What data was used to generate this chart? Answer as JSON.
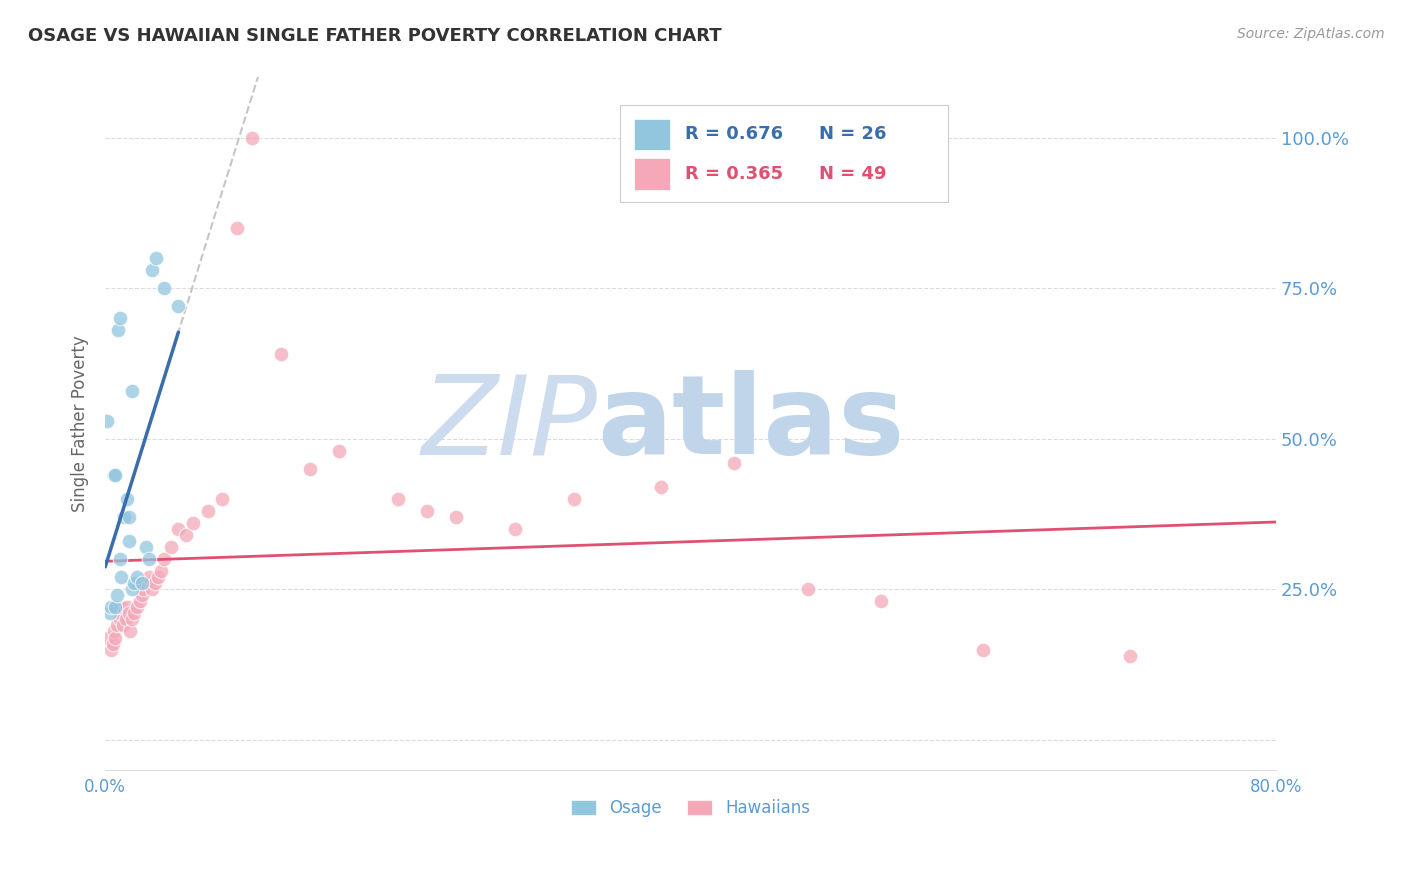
{
  "title": "OSAGE VS HAWAIIAN SINGLE FATHER POVERTY CORRELATION CHART",
  "source": "Source: ZipAtlas.com",
  "ylabel": "Single Father Poverty",
  "legend_r": [
    "R = 0.676",
    "R = 0.365"
  ],
  "legend_n": [
    "N = 26",
    "N = 49"
  ],
  "legend_labels": [
    "Osage",
    "Hawaiians"
  ],
  "xlim": [
    0.0,
    0.8
  ],
  "ylim": [
    -0.05,
    1.1
  ],
  "yticks": [
    0.0,
    0.25,
    0.5,
    0.75,
    1.0
  ],
  "ytick_labels": [
    "",
    "25.0%",
    "50.0%",
    "75.0%",
    "100.0%"
  ],
  "xticks": [
    0.0,
    0.8
  ],
  "xtick_labels": [
    "0.0%",
    "80.0%"
  ],
  "osage_x": [
    0.001,
    0.003,
    0.004,
    0.006,
    0.007,
    0.007,
    0.008,
    0.009,
    0.01,
    0.01,
    0.011,
    0.013,
    0.015,
    0.016,
    0.016,
    0.018,
    0.018,
    0.02,
    0.022,
    0.025,
    0.028,
    0.03,
    0.032,
    0.035,
    0.04,
    0.05
  ],
  "osage_y": [
    0.53,
    0.21,
    0.22,
    0.44,
    0.44,
    0.22,
    0.24,
    0.68,
    0.7,
    0.3,
    0.27,
    0.37,
    0.4,
    0.37,
    0.33,
    0.58,
    0.25,
    0.26,
    0.27,
    0.26,
    0.32,
    0.3,
    0.78,
    0.8,
    0.75,
    0.72
  ],
  "hawaiian_x": [
    0.002,
    0.004,
    0.005,
    0.006,
    0.007,
    0.008,
    0.01,
    0.01,
    0.011,
    0.012,
    0.014,
    0.015,
    0.016,
    0.017,
    0.018,
    0.02,
    0.022,
    0.024,
    0.025,
    0.026,
    0.028,
    0.03,
    0.032,
    0.034,
    0.036,
    0.038,
    0.04,
    0.045,
    0.05,
    0.055,
    0.06,
    0.07,
    0.08,
    0.09,
    0.1,
    0.12,
    0.14,
    0.16,
    0.2,
    0.22,
    0.24,
    0.28,
    0.32,
    0.38,
    0.43,
    0.48,
    0.53,
    0.6,
    0.7
  ],
  "hawaiian_y": [
    0.17,
    0.15,
    0.16,
    0.18,
    0.17,
    0.19,
    0.2,
    0.21,
    0.22,
    0.19,
    0.2,
    0.22,
    0.21,
    0.18,
    0.2,
    0.21,
    0.22,
    0.23,
    0.24,
    0.25,
    0.26,
    0.27,
    0.25,
    0.26,
    0.27,
    0.28,
    0.3,
    0.32,
    0.35,
    0.34,
    0.36,
    0.38,
    0.4,
    0.85,
    1.0,
    0.64,
    0.45,
    0.48,
    0.4,
    0.38,
    0.37,
    0.35,
    0.4,
    0.42,
    0.46,
    0.25,
    0.23,
    0.15,
    0.14
  ],
  "blue_scatter_color": "#92c5de",
  "pink_scatter_color": "#f4a8b8",
  "blue_line_color": "#3a6eab",
  "pink_line_color": "#e05070",
  "dash_color": "#bbbbbb",
  "background_color": "#ffffff",
  "grid_color": "#cccccc",
  "title_color": "#333333",
  "axis_label_color": "#666666",
  "tick_label_color": "#5b9bd5",
  "watermark_zip_color": "#d0dff0",
  "watermark_atlas_color": "#c0d5ee"
}
